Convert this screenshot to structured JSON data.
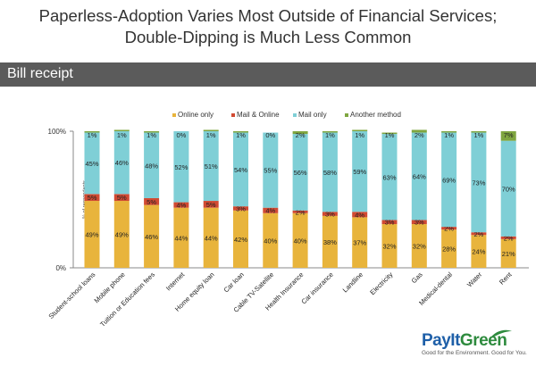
{
  "title_line1": "Paperless-Adoption Varies Most Outside of Financial Services;",
  "title_line2": "Double-Dipping is Much Less Common",
  "section_label": "Bill receipt",
  "logo": {
    "pay": "PayIt",
    "green": "Green",
    "tagline": "Good for the Environment. Good for You."
  },
  "chart_data": {
    "type": "stacked-bar-100",
    "ylabel": "% of respondents",
    "y_ticks": [
      "100%",
      "0%"
    ],
    "ylim": [
      0,
      100
    ],
    "legend_position": "top",
    "categories": [
      "Student-school loans",
      "Mobile phone",
      "Tuition or Education fees",
      "Internet",
      "Home equity loan",
      "Car loan",
      "Cable TV-Satellite",
      "Health Insurance",
      "Car insurance",
      "Landline",
      "Electricity",
      "Gas",
      "Medical-dental",
      "Water",
      "Rent"
    ],
    "series": [
      {
        "name": "Online only",
        "color": "#e8b43c",
        "values": [
          49,
          49,
          46,
          44,
          44,
          42,
          40,
          40,
          38,
          37,
          32,
          32,
          28,
          24,
          21
        ]
      },
      {
        "name": "Mail & Online",
        "color": "#d14a32",
        "values": [
          5,
          5,
          5,
          4,
          5,
          3,
          4,
          2,
          3,
          4,
          3,
          3,
          2,
          2,
          2
        ]
      },
      {
        "name": "Mail only",
        "color": "#7fcfd6",
        "values": [
          45,
          46,
          48,
          52,
          51,
          54,
          55,
          56,
          58,
          59,
          63,
          64,
          69,
          73,
          70
        ]
      },
      {
        "name": "Another method",
        "color": "#7fa640",
        "values": [
          1,
          1,
          1,
          0,
          1,
          1,
          0,
          2,
          1,
          1,
          1,
          2,
          1,
          1,
          7
        ]
      }
    ]
  }
}
